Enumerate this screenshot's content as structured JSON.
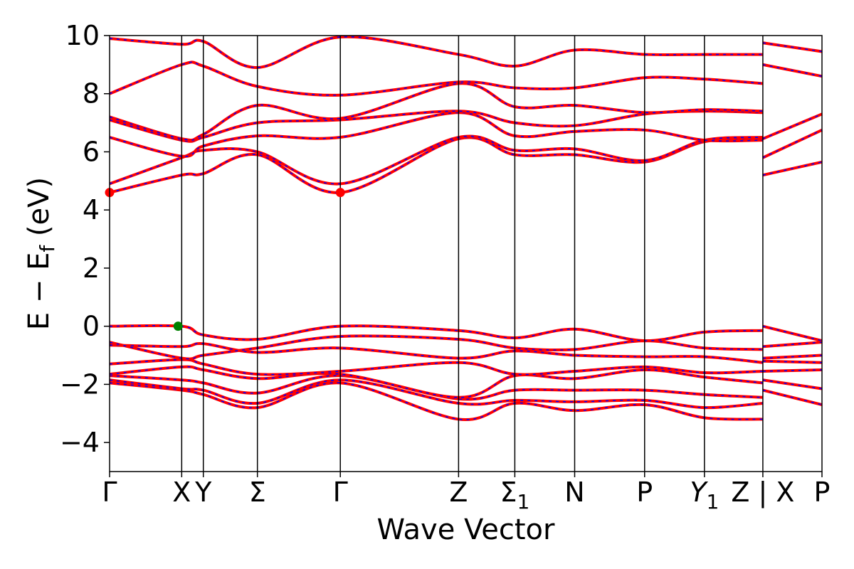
{
  "chart_data": {
    "type": "line",
    "xlabel": "Wave Vector",
    "ylabel": "E − E_f (eV)",
    "ylabel_main": "E − E",
    "ylabel_sub": "f",
    "ylabel_unit": " (eV)",
    "ylim": [
      -5,
      10
    ],
    "yticks": [
      -4,
      -2,
      0,
      2,
      4,
      6,
      8,
      10
    ],
    "ytick_labels": [
      "−4",
      "−2",
      "0",
      "2",
      "4",
      "6",
      "8",
      "10"
    ],
    "xlim": [
      0,
      9.88
    ],
    "high_symmetry_points": [
      {
        "x": 0.0,
        "label": "Γ"
      },
      {
        "x": 1.0,
        "label": "X"
      },
      {
        "x": 1.3,
        "label": "Y"
      },
      {
        "x": 2.05,
        "label": "Σ"
      },
      {
        "x": 3.2,
        "label": "Γ"
      },
      {
        "x": 4.84,
        "label": "Z"
      },
      {
        "x": 5.62,
        "label": "Σ",
        "subscript": "1"
      },
      {
        "x": 6.45,
        "label": "N"
      },
      {
        "x": 7.42,
        "label": "P"
      },
      {
        "x": 8.25,
        "label": "Y",
        "subscript": "1",
        "italic": true
      },
      {
        "x": 9.06,
        "label": "Z | X"
      },
      {
        "x": 9.88,
        "label": "P"
      }
    ],
    "grid": false,
    "legend": "none",
    "colors": {
      "band": "#ff0000",
      "band_overlay": "#0000ff",
      "cbm": "#ff0000",
      "vbm": "#008000"
    },
    "segments": [
      {
        "start": 0.0,
        "end": 9.06,
        "bands": [
          {
            "x": [
              0,
              1,
              1.3,
              2.05,
              3.2,
              4.84,
              5.62,
              6.45,
              7.42,
              8.25,
              9.06
            ],
            "y": [
              -1.95,
              -2.2,
              -2.35,
              -2.8,
              -1.95,
              -3.2,
              -2.65,
              -2.9,
              -2.7,
              -3.15,
              -3.2
            ]
          },
          {
            "x": [
              0,
              1,
              1.3,
              2.05,
              3.2,
              4.84,
              5.62,
              6.45,
              7.42,
              8.25,
              9.06
            ],
            "y": [
              -1.85,
              -2.15,
              -2.2,
              -2.65,
              -1.85,
              -2.65,
              -2.55,
              -2.6,
              -2.55,
              -2.8,
              -2.65
            ]
          },
          {
            "x": [
              0,
              1,
              1.3,
              2.05,
              3.2,
              4.84,
              5.62,
              6.45,
              7.42,
              8.25,
              9.06
            ],
            "y": [
              -1.7,
              -1.85,
              -1.95,
              -2.3,
              -1.7,
              -2.5,
              -2.2,
              -2.2,
              -2.2,
              -2.35,
              -2.45
            ]
          },
          {
            "x": [
              0,
              1,
              1.3,
              2.05,
              3.2,
              4.84,
              5.62,
              6.45,
              7.42,
              8.25,
              9.06
            ],
            "y": [
              -1.65,
              -1.4,
              -1.5,
              -1.8,
              -1.65,
              -2.45,
              -1.7,
              -1.8,
              -1.5,
              -1.75,
              -1.95
            ]
          },
          {
            "x": [
              0,
              1,
              1.3,
              2.05,
              3.2,
              4.84,
              5.62,
              6.45,
              7.42,
              8.25,
              9.06
            ],
            "y": [
              -1.3,
              -1.15,
              -1.3,
              -1.65,
              -1.55,
              -1.25,
              -1.65,
              -1.55,
              -1.4,
              -1.6,
              -1.55
            ]
          },
          {
            "x": [
              0,
              1,
              1.3,
              2.05,
              3.2,
              4.84,
              5.62,
              6.45,
              7.42,
              8.25,
              9.06
            ],
            "y": [
              -0.65,
              -0.7,
              -0.6,
              -0.9,
              -0.75,
              -1.1,
              -0.85,
              -1.0,
              -1.05,
              -1.05,
              -1.25
            ]
          },
          {
            "x": [
              0,
              1,
              1.3,
              2.05,
              3.2,
              4.84,
              5.62,
              6.45,
              7.42,
              8.25,
              9.06
            ],
            "y": [
              -0.55,
              -1.1,
              -1.0,
              -0.75,
              -0.35,
              -0.45,
              -0.75,
              -0.8,
              -0.5,
              -0.75,
              -0.8
            ]
          },
          {
            "x": [
              0,
              1,
              1.3,
              2.05,
              3.2,
              4.84,
              5.62,
              6.45,
              7.42,
              8.25,
              9.06
            ],
            "y": [
              0.0,
              0.0,
              -0.3,
              -0.45,
              0.0,
              -0.15,
              -0.4,
              -0.1,
              -0.5,
              -0.2,
              -0.15
            ]
          },
          {
            "x": [
              0,
              1,
              1.3,
              2.05,
              3.2,
              4.84,
              5.62,
              6.45,
              7.42,
              8.25,
              9.06
            ],
            "y": [
              4.6,
              5.2,
              5.25,
              5.9,
              4.6,
              6.45,
              5.9,
              5.9,
              5.65,
              6.35,
              6.45
            ]
          },
          {
            "x": [
              0,
              1,
              1.3,
              2.05,
              3.2,
              4.84,
              5.62,
              6.45,
              7.42,
              8.25,
              9.06
            ],
            "y": [
              4.9,
              5.8,
              6.05,
              6.0,
              4.9,
              6.5,
              6.05,
              6.1,
              5.7,
              6.4,
              6.5
            ]
          },
          {
            "x": [
              0,
              1,
              1.3,
              2.05,
              3.2,
              4.84,
              5.62,
              6.45,
              7.42,
              8.25,
              9.06
            ],
            "y": [
              6.5,
              5.85,
              6.2,
              6.55,
              6.5,
              7.35,
              6.55,
              6.7,
              6.75,
              6.4,
              6.4
            ]
          },
          {
            "x": [
              0,
              1,
              1.3,
              2.05,
              3.2,
              4.84,
              5.62,
              6.45,
              7.42,
              8.25,
              9.06
            ],
            "y": [
              7.1,
              6.4,
              6.5,
              7.0,
              7.1,
              7.4,
              7.0,
              6.9,
              7.3,
              7.4,
              7.35
            ]
          },
          {
            "x": [
              0,
              1,
              1.3,
              2.05,
              3.2,
              4.84,
              5.62,
              6.45,
              7.42,
              8.25,
              9.06
            ],
            "y": [
              7.2,
              6.45,
              6.6,
              7.6,
              7.15,
              8.35,
              7.55,
              7.6,
              7.35,
              7.45,
              7.4
            ]
          },
          {
            "x": [
              0,
              1,
              1.3,
              2.05,
              3.2,
              4.84,
              5.62,
              6.45,
              7.42,
              8.25,
              9.06
            ],
            "y": [
              8.0,
              9.0,
              8.95,
              8.25,
              7.95,
              8.4,
              8.2,
              8.2,
              8.55,
              8.5,
              8.35
            ]
          },
          {
            "x": [
              0,
              1,
              1.3,
              2.05,
              3.2,
              4.84,
              5.62,
              6.45,
              7.42,
              8.25,
              9.06
            ],
            "y": [
              9.9,
              9.7,
              9.8,
              8.9,
              9.95,
              9.35,
              8.95,
              9.5,
              9.35,
              9.35,
              9.35
            ]
          }
        ]
      },
      {
        "start": 9.06,
        "end": 9.88,
        "bands": [
          {
            "x": [
              9.06,
              9.88
            ],
            "y": [
              -2.2,
              -2.7
            ]
          },
          {
            "x": [
              9.06,
              9.88
            ],
            "y": [
              -1.85,
              -2.15
            ]
          },
          {
            "x": [
              9.06,
              9.88
            ],
            "y": [
              -1.55,
              -1.5
            ]
          },
          {
            "x": [
              9.06,
              9.88
            ],
            "y": [
              -1.2,
              -1.25
            ]
          },
          {
            "x": [
              9.06,
              9.88
            ],
            "y": [
              -1.1,
              -1.0
            ]
          },
          {
            "x": [
              9.06,
              9.88
            ],
            "y": [
              -0.7,
              -0.55
            ]
          },
          {
            "x": [
              9.06,
              9.88
            ],
            "y": [
              0.0,
              -0.5
            ]
          },
          {
            "x": [
              9.06,
              9.88
            ],
            "y": [
              5.2,
              5.65
            ]
          },
          {
            "x": [
              9.06,
              9.88
            ],
            "y": [
              5.8,
              6.75
            ]
          },
          {
            "x": [
              9.06,
              9.88
            ],
            "y": [
              6.45,
              7.3
            ]
          },
          {
            "x": [
              9.06,
              9.88
            ],
            "y": [
              9.0,
              8.6
            ]
          },
          {
            "x": [
              9.06,
              9.88
            ],
            "y": [
              9.75,
              9.45
            ]
          }
        ]
      }
    ],
    "markers": [
      {
        "name": "cbm-marker",
        "x": 0.0,
        "y": 4.6,
        "color": "#ff0000"
      },
      {
        "name": "cbm-marker",
        "x": 3.2,
        "y": 4.6,
        "color": "#ff0000"
      },
      {
        "name": "vbm-marker",
        "x": 0.95,
        "y": 0.0,
        "color": "#008000"
      }
    ]
  }
}
